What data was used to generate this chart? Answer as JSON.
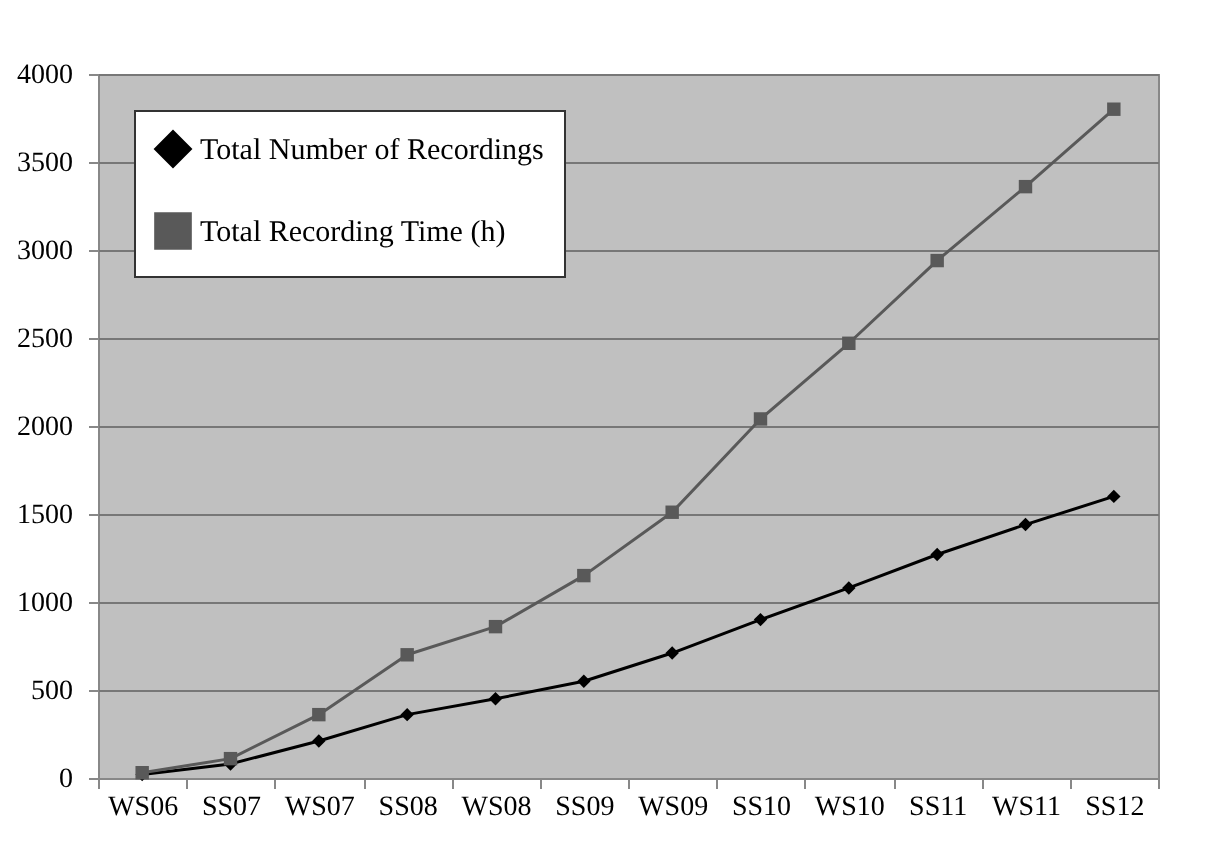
{
  "chart_data": {
    "type": "line",
    "categories": [
      "WS06",
      "SS07",
      "WS07",
      "SS08",
      "WS08",
      "SS09",
      "WS09",
      "SS10",
      "WS10",
      "SS11",
      "WS11",
      "SS12"
    ],
    "series": [
      {
        "name": "Total Number of Recordings",
        "color": "#000000",
        "marker": "diamond",
        "values": [
          20,
          80,
          210,
          360,
          450,
          550,
          710,
          900,
          1080,
          1270,
          1440,
          1600
        ]
      },
      {
        "name": "Total Recording Time (h)",
        "color": "#595959",
        "marker": "square",
        "values": [
          30,
          110,
          360,
          700,
          860,
          1150,
          1510,
          2040,
          2470,
          2940,
          3360,
          3800
        ]
      }
    ],
    "ylim": [
      0,
      4000
    ],
    "yticks": [
      0,
      500,
      1000,
      1500,
      2000,
      2500,
      3000,
      3500,
      4000
    ],
    "grid": "y",
    "legend": "top left"
  }
}
